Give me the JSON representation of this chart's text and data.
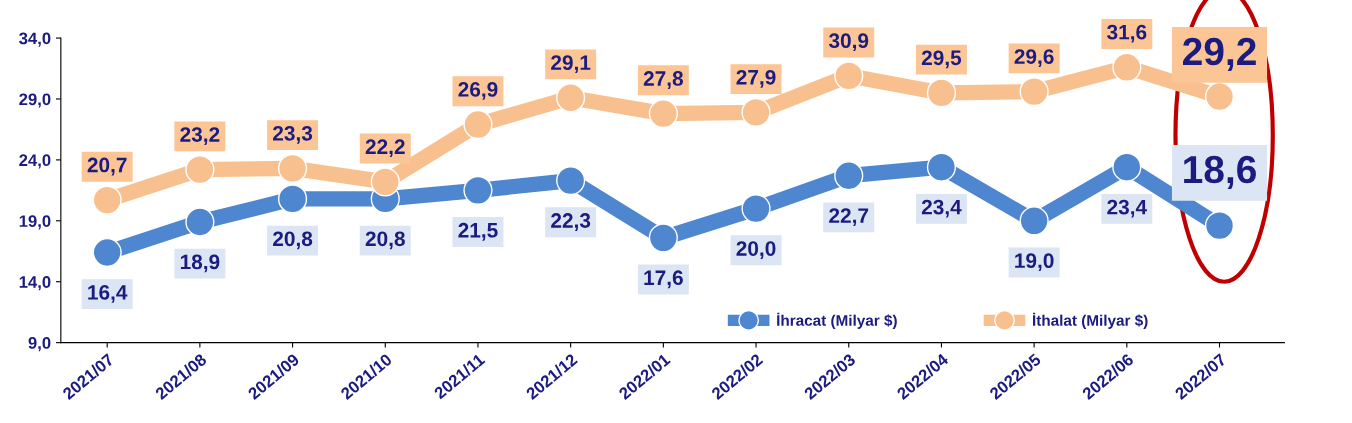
{
  "chart_data": {
    "type": "line",
    "categories": [
      "2021/07",
      "2021/08",
      "2021/09",
      "2021/10",
      "2021/11",
      "2021/12",
      "2022/01",
      "2022/02",
      "2022/03",
      "2022/04",
      "2022/05",
      "2022/06",
      "2022/07"
    ],
    "series": [
      {
        "name": "İhracat (Milyar $)",
        "color": "#4f86d0",
        "values": [
          16.4,
          18.9,
          20.8,
          20.8,
          21.5,
          22.3,
          17.6,
          20.0,
          22.7,
          23.4,
          19.0,
          23.4,
          18.6
        ],
        "value_labels": [
          "16,4",
          "18,9",
          "20,8",
          "20,8",
          "21,5",
          "22,3",
          "17,6",
          "20,0",
          "22,7",
          "23,4",
          "19,0",
          "23,4",
          "18,6"
        ]
      },
      {
        "name": "İthalat (Milyar $)",
        "color": "#f9c08f",
        "values": [
          20.7,
          23.2,
          23.3,
          22.2,
          26.9,
          29.1,
          27.8,
          27.9,
          30.9,
          29.5,
          29.6,
          31.6,
          29.2
        ],
        "value_labels": [
          "20,7",
          "23,2",
          "23,3",
          "22,2",
          "26,9",
          "29,1",
          "27,8",
          "27,9",
          "30,9",
          "29,5",
          "29,6",
          "31,6",
          "29,2"
        ]
      }
    ],
    "ylim": [
      9,
      34
    ],
    "yticks": [
      {
        "value": 9,
        "label": "9,0"
      },
      {
        "value": 14,
        "label": "14,0"
      },
      {
        "value": 19,
        "label": "19,0"
      },
      {
        "value": 24,
        "label": "24,0"
      },
      {
        "value": 29,
        "label": "29,0"
      },
      {
        "value": 34,
        "label": "34,0"
      }
    ],
    "marker": "circle",
    "line_style": "solid",
    "legend": "bottom right",
    "grid": false
  }
}
